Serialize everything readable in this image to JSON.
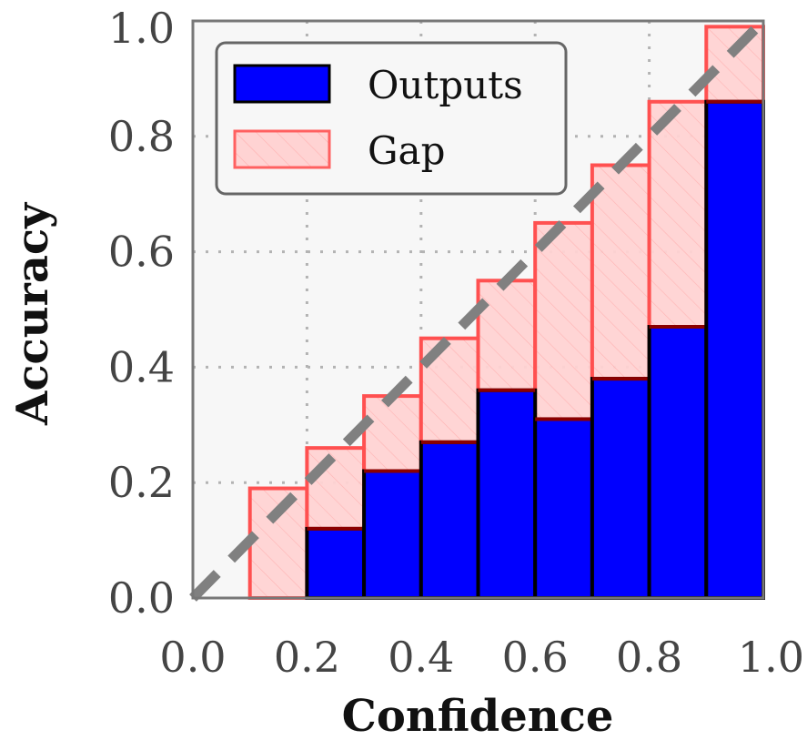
{
  "chart_data": {
    "type": "bar",
    "title": "",
    "xlabel": "Confidence",
    "ylabel": "Accuracy",
    "xlim": [
      0,
      1
    ],
    "ylim": [
      0,
      1
    ],
    "x_ticks": [
      "0.0",
      "0.2",
      "0.4",
      "0.6",
      "0.8",
      "1.0"
    ],
    "y_ticks": [
      "0.0",
      "0.2",
      "0.4",
      "0.6",
      "0.8",
      "1.0"
    ],
    "grid": true,
    "legend_position": "top-left",
    "bin_edges": [
      0.0,
      0.1,
      0.2,
      0.3,
      0.4,
      0.5,
      0.6,
      0.7,
      0.8,
      0.9,
      1.0
    ],
    "series": [
      {
        "name": "Outputs",
        "color": "#0000ff",
        "values": [
          0.0,
          0.0,
          0.12,
          0.22,
          0.27,
          0.36,
          0.31,
          0.38,
          0.47,
          0.86
        ]
      },
      {
        "name": "Gap",
        "color": "#ffc8c8",
        "edge_color": "#ff5050",
        "values": [
          0.0,
          0.19,
          0.26,
          0.35,
          0.45,
          0.55,
          0.65,
          0.75,
          0.86,
          0.99
        ]
      }
    ],
    "diagonal": {
      "from": [
        0,
        0
      ],
      "to": [
        1,
        1
      ],
      "color": "#808080",
      "style": "dashed"
    }
  }
}
